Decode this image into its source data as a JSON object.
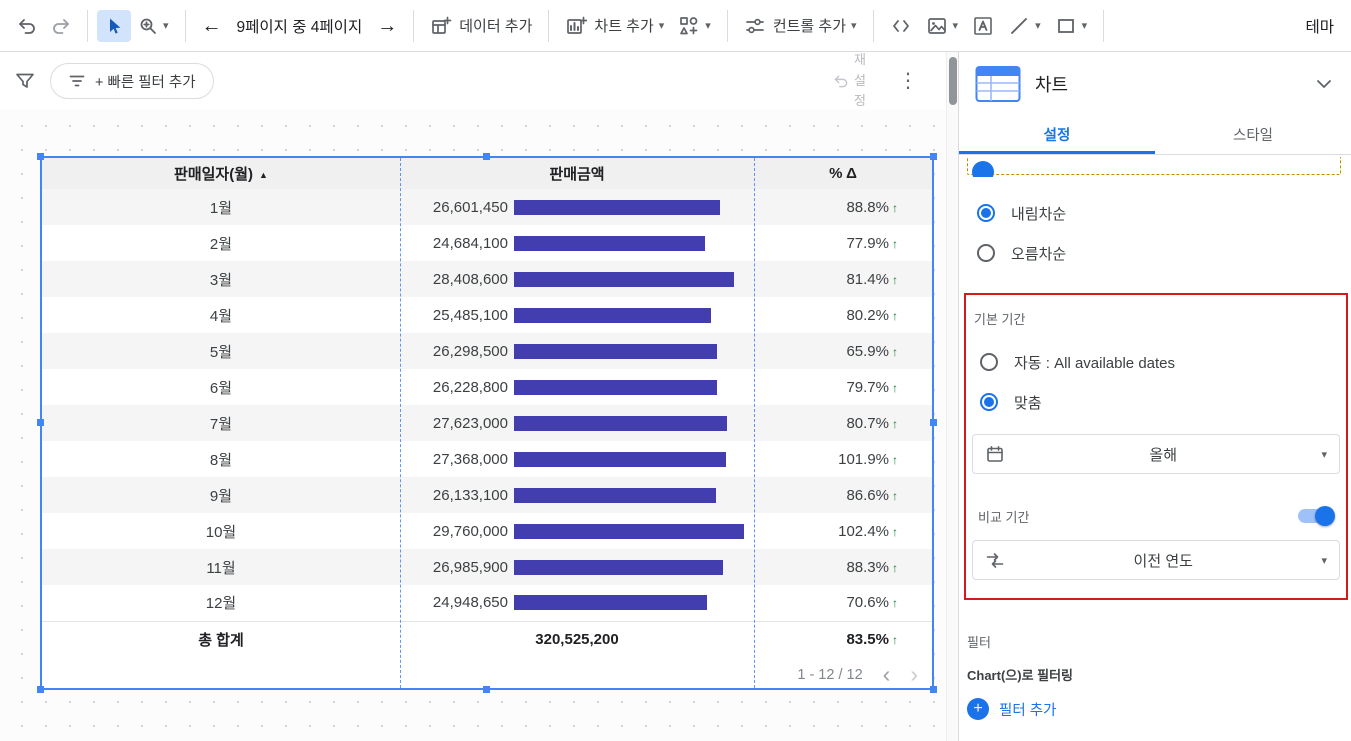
{
  "colors": {
    "accent": "#1a73e8",
    "bar": "#423eb0",
    "selection": "#4285f4",
    "green": "#188038",
    "highlight": "#d21b1b"
  },
  "toolbar": {
    "page_nav": "9페이지 중 4페이지",
    "add_data": "데이터 추가",
    "add_chart": "차트 추가",
    "add_control": "컨트롤 추가",
    "theme": "테마"
  },
  "filter_bar": {
    "quick_filter": "+ 빠른 필터 추가",
    "reset": "재설정"
  },
  "chart_data": {
    "type": "table",
    "columns": [
      "판매일자(월)",
      "판매금액",
      "% Δ"
    ],
    "sorted_column": "판매일자(월)",
    "sort_direction": "ascending",
    "bar_color": "#423eb0",
    "rows": [
      {
        "month": "1월",
        "amount": "26,601,450",
        "value": 26601450,
        "delta": "88.8%"
      },
      {
        "month": "2월",
        "amount": "24,684,100",
        "value": 24684100,
        "delta": "77.9%"
      },
      {
        "month": "3월",
        "amount": "28,408,600",
        "value": 28408600,
        "delta": "81.4%"
      },
      {
        "month": "4월",
        "amount": "25,485,100",
        "value": 25485100,
        "delta": "80.2%"
      },
      {
        "month": "5월",
        "amount": "26,298,500",
        "value": 26298500,
        "delta": "65.9%"
      },
      {
        "month": "6월",
        "amount": "26,228,800",
        "value": 26228800,
        "delta": "79.7%"
      },
      {
        "month": "7월",
        "amount": "27,623,000",
        "value": 27623000,
        "delta": "80.7%"
      },
      {
        "month": "8월",
        "amount": "27,368,000",
        "value": 27368000,
        "delta": "101.9%"
      },
      {
        "month": "9월",
        "amount": "26,133,100",
        "value": 26133100,
        "delta": "86.6%"
      },
      {
        "month": "10월",
        "amount": "29,760,000",
        "value": 29760000,
        "delta": "102.4%"
      },
      {
        "month": "11월",
        "amount": "26,985,900",
        "value": 26985900,
        "delta": "88.3%"
      },
      {
        "month": "12월",
        "amount": "24,948,650",
        "value": 24948650,
        "delta": "70.6%"
      }
    ],
    "total": {
      "label": "총 합계",
      "amount": "320,525,200",
      "delta": "83.5%"
    },
    "pagination": "1 - 12 / 12"
  },
  "panel": {
    "title": "차트",
    "tabs": [
      {
        "label": "설정",
        "active": true
      },
      {
        "label": "스타일",
        "active": false
      }
    ],
    "sort_desc": "내림차순",
    "sort_asc": "오름차순",
    "period": {
      "label": "기본 기간",
      "auto": "자동 : All available dates",
      "custom": "맞춤",
      "value": "올해",
      "compare_label": "비교 기간",
      "compare_on": true,
      "compare_value": "이전 연도"
    },
    "filter": {
      "label": "필터",
      "scope": "Chart(으)로 필터링",
      "add_label": "필터 추가"
    }
  }
}
